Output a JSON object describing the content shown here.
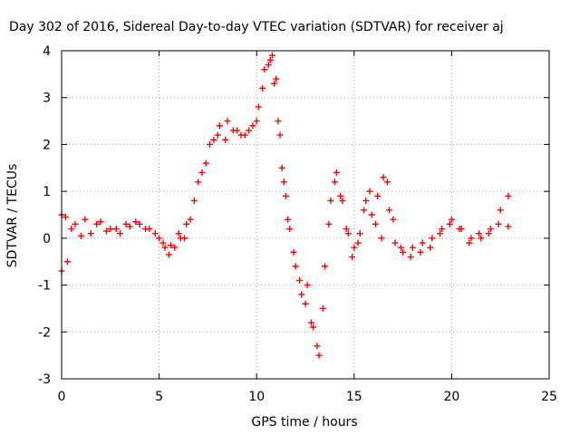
{
  "chart_data": {
    "type": "scatter",
    "title": "Day 302 of 2016, Sidereal Day-to-day VTEC variation (SDTVAR) for receiver aj",
    "xlabel": "GPS time / hours",
    "ylabel": "SDTVAR / TECUs",
    "xlim": [
      0,
      25
    ],
    "ylim": [
      -3,
      4
    ],
    "xticks": [
      0,
      5,
      10,
      15,
      20,
      25
    ],
    "yticks": [
      -3,
      -2,
      -1,
      0,
      1,
      2,
      3,
      4
    ],
    "grid": true,
    "marker": "+",
    "colors": {
      "series": "#ff0000",
      "grid": "#a0a0a0",
      "axes": "#000000"
    },
    "series": [
      {
        "x": [
          0.0,
          0.2,
          0.5,
          1.0,
          1.5,
          2.0,
          2.5,
          3.0,
          3.5,
          4.0,
          4.5,
          5.0,
          5.3,
          5.6,
          6.0,
          6.3,
          6.6,
          7.0,
          7.4,
          7.8,
          8.1,
          8.5,
          9.0,
          9.4,
          9.8,
          10.1,
          10.4,
          10.7,
          10.9,
          11.1,
          11.3,
          11.5,
          11.7,
          12.0,
          12.3,
          12.6,
          12.9,
          13.2,
          13.5,
          13.8,
          14.1,
          14.4,
          14.7,
          15.0,
          15.3,
          15.6,
          15.9,
          16.2,
          16.5,
          16.8,
          17.1,
          17.5,
          18.0,
          18.5,
          19.0,
          19.5,
          20.0,
          20.5,
          21.0,
          21.5,
          22.0,
          22.5,
          22.9
        ],
        "y": [
          0.5,
          0.45,
          0.2,
          0.05,
          0.1,
          0.35,
          0.2,
          0.1,
          0.25,
          0.3,
          0.2,
          0.0,
          -0.2,
          -0.15,
          0.1,
          0.0,
          0.4,
          1.2,
          1.6,
          2.1,
          2.4,
          2.5,
          2.3,
          2.2,
          2.4,
          2.8,
          3.6,
          3.8,
          3.3,
          2.5,
          1.5,
          0.9,
          0.2,
          -0.6,
          -1.2,
          -1.0,
          -1.9,
          -2.5,
          -0.6,
          0.8,
          1.4,
          0.8,
          0.1,
          -0.2,
          0.1,
          0.8,
          0.5,
          0.9,
          1.3,
          0.6,
          -0.1,
          -0.3,
          -0.2,
          -0.1,
          0.0,
          0.2,
          0.4,
          0.2,
          0.0,
          0.0,
          0.2,
          0.6,
          0.9
        ]
      },
      {
        "x": [
          0.0,
          0.3,
          0.7,
          1.2,
          1.8,
          2.3,
          2.8,
          3.3,
          3.8,
          4.3,
          4.8,
          5.2,
          5.5,
          5.8,
          6.1,
          6.4,
          6.8,
          7.2,
          7.6,
          8.0,
          8.4,
          8.8,
          9.2,
          9.6,
          10.0,
          10.3,
          10.6,
          10.8,
          11.0,
          11.2,
          11.4,
          11.6,
          11.9,
          12.2,
          12.5,
          12.8,
          13.1,
          13.4,
          13.7,
          14.0,
          14.3,
          14.6,
          14.9,
          15.2,
          15.5,
          15.8,
          16.1,
          16.4,
          16.7,
          17.0,
          17.4,
          17.9,
          18.4,
          18.9,
          19.4,
          19.9,
          20.4,
          20.9,
          21.4,
          21.9,
          22.4,
          22.9
        ],
        "y": [
          -0.7,
          -0.5,
          0.3,
          0.4,
          0.3,
          0.15,
          0.2,
          0.3,
          0.35,
          0.2,
          0.1,
          -0.1,
          -0.35,
          -0.2,
          0.0,
          0.3,
          0.8,
          1.4,
          2.0,
          2.2,
          2.1,
          2.3,
          2.2,
          2.3,
          2.5,
          3.2,
          3.7,
          3.9,
          3.4,
          2.2,
          1.2,
          0.4,
          -0.3,
          -0.9,
          -1.4,
          -1.8,
          -2.3,
          -1.5,
          0.3,
          1.2,
          0.9,
          0.2,
          -0.4,
          -0.1,
          0.6,
          1.0,
          0.3,
          0.0,
          1.2,
          0.4,
          -0.2,
          -0.4,
          -0.3,
          -0.2,
          0.1,
          0.3,
          0.2,
          -0.1,
          0.1,
          0.1,
          0.3,
          0.25
        ]
      }
    ]
  }
}
